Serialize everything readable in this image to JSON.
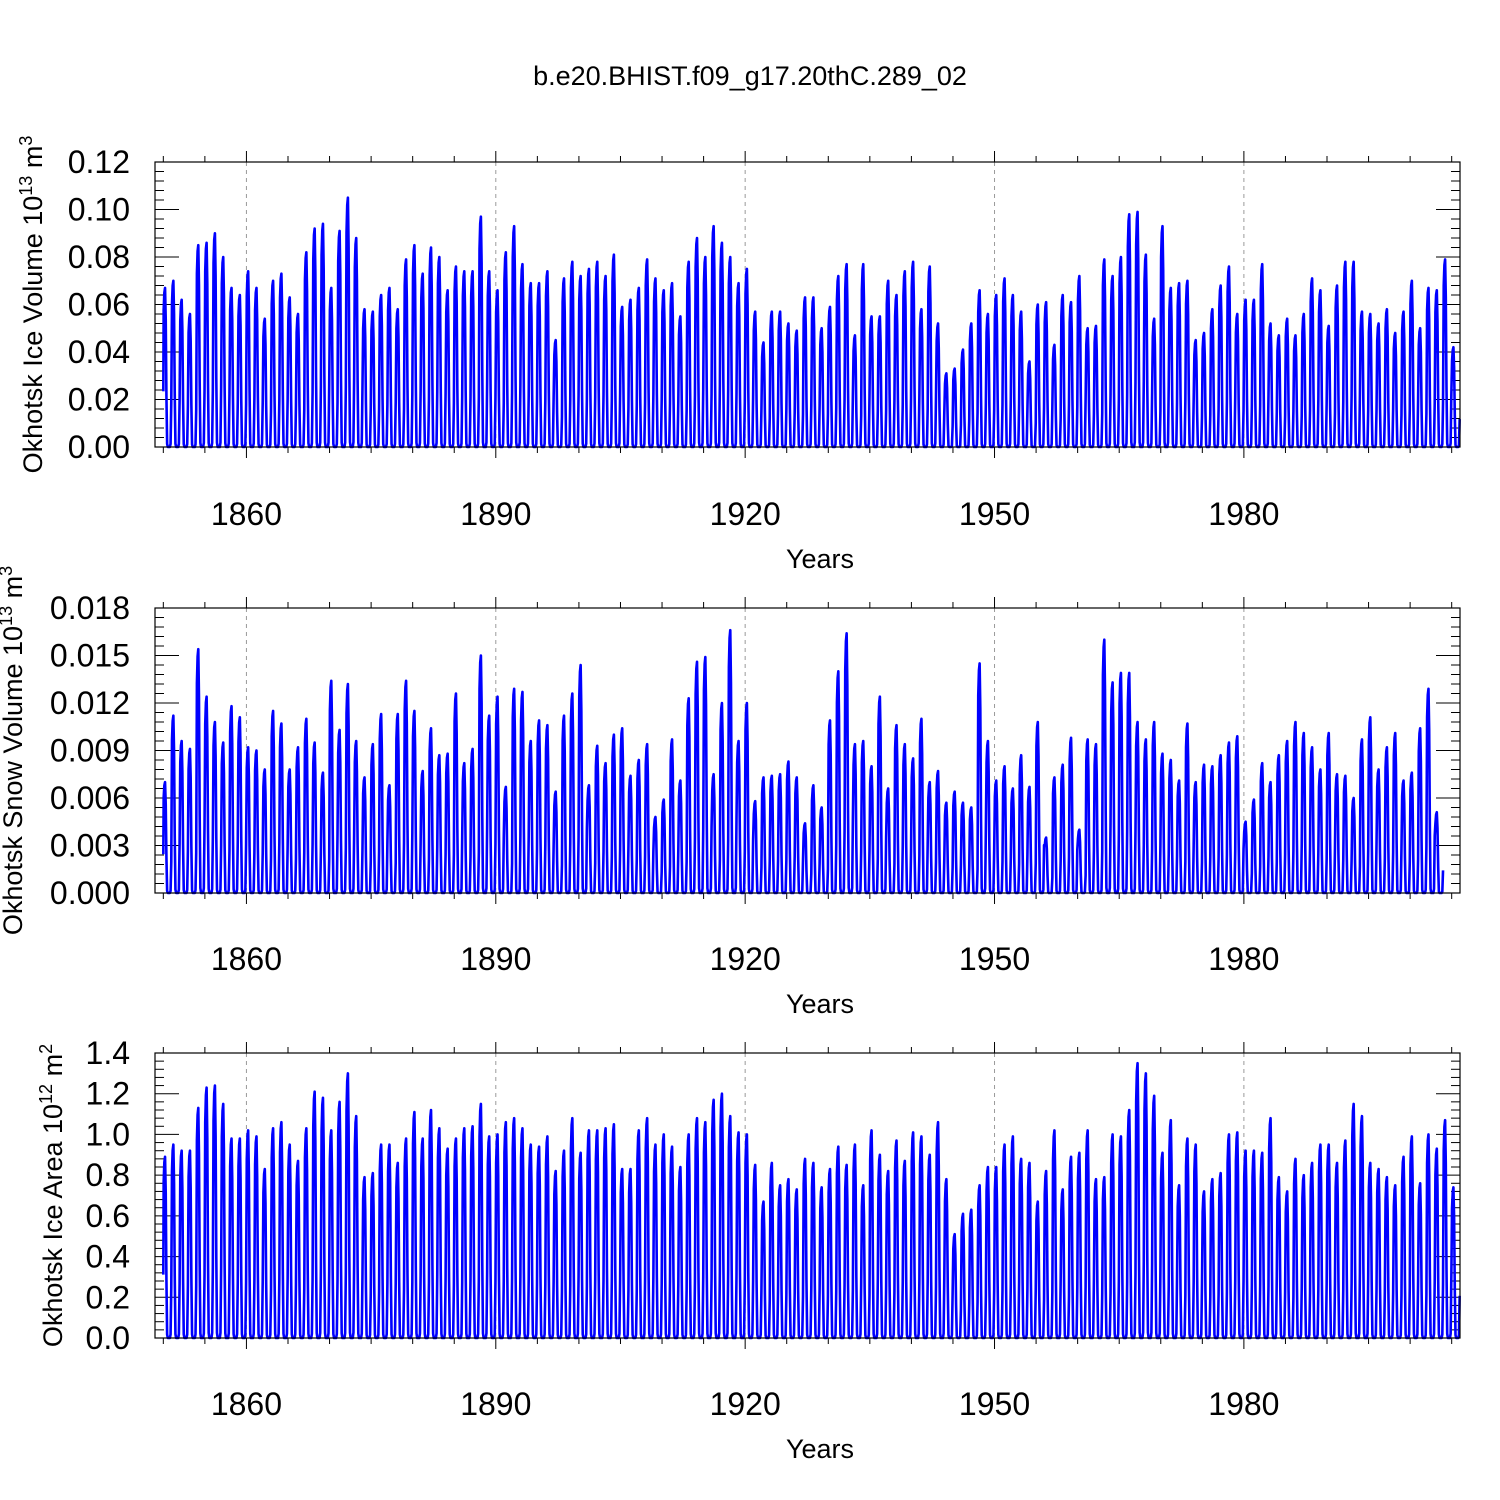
{
  "title": "b.e20.BHIST.f09_g17.20thC.289_02",
  "colors": {
    "line": "#0000ff",
    "axis": "#000000",
    "grid": "#9a9a9a"
  },
  "chart_data": [
    {
      "type": "line",
      "title": "",
      "xlabel": "Years",
      "ylabel": {
        "text": "Okhotsk Ice Volume 10",
        "sup": "13",
        "unit": " m",
        "unit_sup": "3"
      },
      "xlim": [
        1849,
        2006
      ],
      "ylim": [
        0,
        0.12
      ],
      "grid": "x-dashed",
      "xticks": [
        1860,
        1890,
        1920,
        1950,
        1980
      ],
      "xtick_labels": [
        "1860",
        "1890",
        "1920",
        "1950",
        "1980"
      ],
      "yticks": [
        0,
        0.02,
        0.04,
        0.06,
        0.08,
        0.1,
        0.12
      ],
      "ytick_labels": [
        "0.00",
        "0.02",
        "0.04",
        "0.06",
        "0.08",
        "0.10",
        "0.12"
      ],
      "series": [
        {
          "start_year": 1850,
          "annual_max": [
            0.067,
            0.07,
            0.062,
            0.056,
            0.085,
            0.086,
            0.09,
            0.08,
            0.067,
            0.064,
            0.074,
            0.067,
            0.054,
            0.07,
            0.073,
            0.063,
            0.056,
            0.082,
            0.092,
            0.094,
            0.067,
            0.091,
            0.105,
            0.088,
            0.058,
            0.057,
            0.064,
            0.067,
            0.058,
            0.079,
            0.085,
            0.073,
            0.084,
            0.08,
            0.066,
            0.076,
            0.074,
            0.074,
            0.097,
            0.074,
            0.066,
            0.082,
            0.093,
            0.077,
            0.069,
            0.069,
            0.074,
            0.045,
            0.071,
            0.078,
            0.072,
            0.075,
            0.078,
            0.072,
            0.081,
            0.059,
            0.062,
            0.067,
            0.079,
            0.071,
            0.066,
            0.069,
            0.055,
            0.078,
            0.088,
            0.08,
            0.093,
            0.086,
            0.08,
            0.069,
            0.075,
            0.057,
            0.044,
            0.057,
            0.057,
            0.052,
            0.049,
            0.063,
            0.063,
            0.05,
            0.059,
            0.072,
            0.077,
            0.047,
            0.077,
            0.055,
            0.055,
            0.07,
            0.064,
            0.074,
            0.078,
            0.058,
            0.076,
            0.052,
            0.031,
            0.033,
            0.041,
            0.052,
            0.066,
            0.056,
            0.064,
            0.071,
            0.064,
            0.057,
            0.036,
            0.06,
            0.061,
            0.043,
            0.064,
            0.061,
            0.072,
            0.05,
            0.051,
            0.079,
            0.072,
            0.08,
            0.098,
            0.099,
            0.081,
            0.054,
            0.093,
            0.067,
            0.069,
            0.07,
            0.045,
            0.048,
            0.058,
            0.068,
            0.076,
            0.056,
            0.062,
            0.062,
            0.077,
            0.052,
            0.047,
            0.054,
            0.047,
            0.056,
            0.071,
            0.066,
            0.051,
            0.068,
            0.078,
            0.078,
            0.057,
            0.056,
            0.052,
            0.058,
            0.048,
            0.057,
            0.07,
            0.05,
            0.067,
            0.066,
            0.079,
            0.042
          ]
        }
      ]
    },
    {
      "type": "line",
      "title": "",
      "xlabel": "Years",
      "ylabel": {
        "text": "Okhotsk Snow Volume 10",
        "sup": "13",
        "unit": " m",
        "unit_sup": "3"
      },
      "xlim": [
        1849,
        2006
      ],
      "ylim": [
        0,
        0.018
      ],
      "grid": "x-dashed",
      "xticks": [
        1860,
        1890,
        1920,
        1950,
        1980
      ],
      "xtick_labels": [
        "1860",
        "1890",
        "1920",
        "1950",
        "1980"
      ],
      "yticks": [
        0,
        0.003,
        0.006,
        0.009,
        0.012,
        0.015,
        0.018
      ],
      "ytick_labels": [
        "0.000",
        "0.003",
        "0.006",
        "0.009",
        "0.012",
        "0.015",
        "0.018"
      ],
      "series": [
        {
          "start_year": 1850,
          "annual_max": [
            0.007,
            0.0112,
            0.0096,
            0.0091,
            0.0154,
            0.0124,
            0.0108,
            0.0095,
            0.0118,
            0.0111,
            0.0092,
            0.009,
            0.0078,
            0.0115,
            0.0107,
            0.0078,
            0.0092,
            0.011,
            0.0095,
            0.0076,
            0.0134,
            0.0103,
            0.0132,
            0.0096,
            0.0073,
            0.0094,
            0.0113,
            0.0068,
            0.0113,
            0.0134,
            0.0115,
            0.0077,
            0.0104,
            0.0087,
            0.0088,
            0.0126,
            0.0082,
            0.0091,
            0.015,
            0.0112,
            0.0124,
            0.0067,
            0.0129,
            0.0127,
            0.0096,
            0.0109,
            0.0106,
            0.0064,
            0.0112,
            0.0126,
            0.0144,
            0.0068,
            0.0093,
            0.0082,
            0.01,
            0.0104,
            0.0074,
            0.0084,
            0.0094,
            0.0048,
            0.0059,
            0.0097,
            0.0071,
            0.0123,
            0.0146,
            0.0149,
            0.0075,
            0.012,
            0.0166,
            0.0096,
            0.012,
            0.0058,
            0.0073,
            0.0074,
            0.0075,
            0.0083,
            0.0073,
            0.0044,
            0.0068,
            0.0054,
            0.0109,
            0.014,
            0.0164,
            0.0094,
            0.0096,
            0.008,
            0.0124,
            0.0066,
            0.0106,
            0.0094,
            0.0085,
            0.011,
            0.007,
            0.0077,
            0.0057,
            0.0064,
            0.0057,
            0.0054,
            0.0145,
            0.0096,
            0.0071,
            0.008,
            0.0066,
            0.0087,
            0.0067,
            0.0108,
            0.0035,
            0.0073,
            0.0081,
            0.0098,
            0.004,
            0.0097,
            0.0094,
            0.016,
            0.0133,
            0.0139,
            0.0139,
            0.0108,
            0.0097,
            0.0108,
            0.0088,
            0.0084,
            0.0071,
            0.0107,
            0.007,
            0.0081,
            0.008,
            0.0087,
            0.0095,
            0.0099,
            0.0045,
            0.0059,
            0.0082,
            0.007,
            0.0087,
            0.0096,
            0.0108,
            0.0101,
            0.0092,
            0.0078,
            0.0101,
            0.0075,
            0.0074,
            0.006,
            0.0097,
            0.0111,
            0.0078,
            0.0092,
            0.0101,
            0.0071,
            0.0076,
            0.0104,
            0.0129,
            0.0051
          ]
        }
      ]
    },
    {
      "type": "line",
      "title": "",
      "xlabel": "Years",
      "ylabel": {
        "text": "Okhotsk Ice Area 10",
        "sup": "12",
        "unit": " m",
        "unit_sup": "2"
      },
      "xlim": [
        1849,
        2006
      ],
      "ylim": [
        0,
        1.4
      ],
      "grid": "x-dashed",
      "xticks": [
        1860,
        1890,
        1920,
        1950,
        1980
      ],
      "xtick_labels": [
        "1860",
        "1890",
        "1920",
        "1950",
        "1980"
      ],
      "yticks": [
        0,
        0.2,
        0.4,
        0.6,
        0.8,
        1.0,
        1.2,
        1.4
      ],
      "ytick_labels": [
        "0.0",
        "0.2",
        "0.4",
        "0.6",
        "0.8",
        "1.0",
        "1.2",
        "1.4"
      ],
      "series": [
        {
          "start_year": 1850,
          "annual_max": [
            0.89,
            0.95,
            0.92,
            0.92,
            1.13,
            1.23,
            1.24,
            1.15,
            0.98,
            0.98,
            1.02,
            0.99,
            0.83,
            1.03,
            1.06,
            0.95,
            0.87,
            1.03,
            1.21,
            1.18,
            1.02,
            1.16,
            1.3,
            1.09,
            0.79,
            0.81,
            0.95,
            0.95,
            0.86,
            0.98,
            1.11,
            0.98,
            1.12,
            1.03,
            0.93,
            0.98,
            1.03,
            1.04,
            1.15,
            0.99,
            1.0,
            1.06,
            1.08,
            1.03,
            0.95,
            0.94,
            0.99,
            0.82,
            0.92,
            1.08,
            0.91,
            1.02,
            1.02,
            1.03,
            1.05,
            0.83,
            0.83,
            1.02,
            1.08,
            0.95,
            1.0,
            0.94,
            0.84,
            1.0,
            1.08,
            1.06,
            1.17,
            1.2,
            1.09,
            1.01,
            1.0,
            0.85,
            0.67,
            0.86,
            0.75,
            0.78,
            0.73,
            0.88,
            0.86,
            0.74,
            0.83,
            0.94,
            0.85,
            0.95,
            0.75,
            1.02,
            0.9,
            0.82,
            0.97,
            0.87,
            1.01,
            0.99,
            0.9,
            1.06,
            0.78,
            0.51,
            0.61,
            0.63,
            0.75,
            0.84,
            0.84,
            0.95,
            0.99,
            0.88,
            0.86,
            0.67,
            0.82,
            1.02,
            0.73,
            0.89,
            0.91,
            1.02,
            0.78,
            0.79,
            1.0,
            0.99,
            1.12,
            1.35,
            1.3,
            1.19,
            0.91,
            1.07,
            0.75,
            0.98,
            0.95,
            0.72,
            0.78,
            0.81,
            1.0,
            1.01,
            0.92,
            0.92,
            0.91,
            1.08,
            0.79,
            0.72,
            0.88,
            0.8,
            0.86,
            0.95,
            0.95,
            0.86,
            0.97,
            1.15,
            1.09,
            0.86,
            0.83,
            0.79,
            0.75,
            0.89,
            0.99,
            0.76,
            1.0,
            0.93,
            1.07,
            0.74
          ]
        }
      ]
    }
  ]
}
